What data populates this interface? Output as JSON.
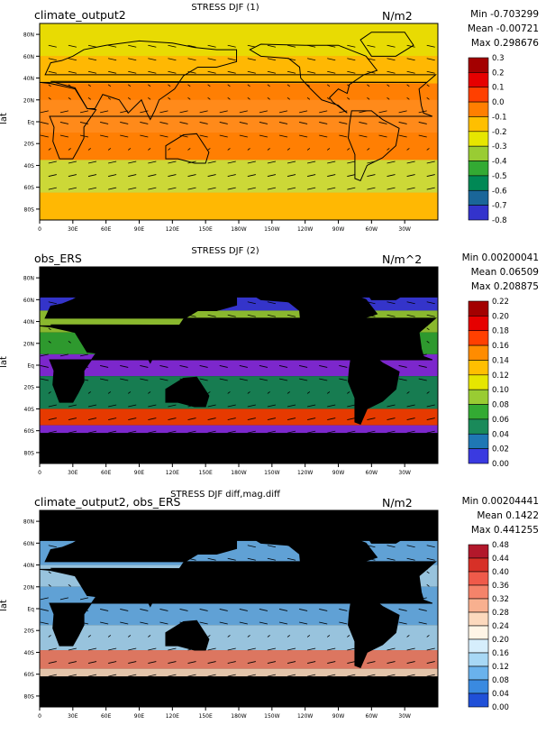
{
  "panels": [
    {
      "title": "STRESS DJF (1)",
      "name": "climate_output2",
      "units": "N/m2",
      "stats": {
        "min": "Min -0.703299",
        "mean": "Mean -0.00721",
        "max": "Max 0.298676"
      },
      "cbar_labels": [
        "0.3",
        "0.2",
        "0.1",
        "0.0",
        "-0.1",
        "-0.2",
        "-0.3",
        "-0.4",
        "-0.5",
        "-0.6",
        "-0.7",
        "-0.8"
      ],
      "cbar_colors": [
        "#a30000",
        "#e60000",
        "#ff4000",
        "#ff7f00",
        "#ffbf00",
        "#e6e600",
        "#99cc33",
        "#33aa33",
        "#008855",
        "#1a6699",
        "#3333cc",
        "#8a2be2"
      ],
      "field_color": "#ff7f1e",
      "land_visible": true
    },
    {
      "title": "STRESS DJF (2)",
      "name": "obs_ERS",
      "units": "N/m^2",
      "stats": {
        "min": "Min 0.00200041",
        "mean": "Mean 0.06509",
        "max": "Max 0.208875"
      },
      "cbar_labels": [
        "0.22",
        "0.20",
        "0.18",
        "0.16",
        "0.14",
        "0.12",
        "0.10",
        "0.08",
        "0.06",
        "0.04",
        "0.02",
        "0.00"
      ],
      "cbar_colors": [
        "#a30000",
        "#e60000",
        "#ff4000",
        "#ff8c00",
        "#ffbf00",
        "#e6e600",
        "#99cc33",
        "#33aa33",
        "#1a8a5a",
        "#1f77b4",
        "#3a3ae0",
        "#8a2be2"
      ],
      "field_color": "#8a2be2",
      "land_visible": false
    },
    {
      "title": "STRESS DJF diff,mag.diff",
      "name": "climate_output2, obs_ERS",
      "units": "N/m2",
      "stats": {
        "min": "Min 0.00204441",
        "mean": "Mean 0.1422",
        "max": "Max 0.441255"
      },
      "cbar_labels": [
        "0.48",
        "0.44",
        "0.40",
        "0.36",
        "0.32",
        "0.28",
        "0.24",
        "0.20",
        "0.16",
        "0.12",
        "0.08",
        "0.04",
        "0.00"
      ],
      "cbar_colors": [
        "#b2182b",
        "#d73027",
        "#ef5a4a",
        "#f4836a",
        "#f8b08f",
        "#fcd9bd",
        "#fff5e6",
        "#d6eefc",
        "#a8d8f5",
        "#6ab2ec",
        "#3a8ae0",
        "#2050d8",
        "#0a10c8"
      ],
      "field_color": "#a8d8f5",
      "land_visible": false
    }
  ],
  "axes": {
    "ylabel": "lat",
    "lat_ticks": [
      "80N",
      "60N",
      "40N",
      "20N",
      "Eq",
      "20S",
      "40S",
      "60S",
      "80S"
    ],
    "lon_ticks": [
      "0",
      "30E",
      "60E",
      "90E",
      "120E",
      "150E",
      "180W",
      "150W",
      "120W",
      "90W",
      "60W",
      "30W"
    ]
  },
  "chart_data": [
    {
      "type": "heatmap",
      "title": "STRESS DJF (1)",
      "ylabel": "lat",
      "units": "N/m2",
      "stats": {
        "min": -0.703299,
        "mean": -0.00721,
        "max": 0.298676
      },
      "colorbar_range": [
        -0.8,
        0.3
      ],
      "y_ticks": [
        "80N",
        "60N",
        "40N",
        "20N",
        "Eq",
        "20S",
        "40S",
        "60S",
        "80S"
      ],
      "x_ticks": [
        "0",
        "30E",
        "60E",
        "90E",
        "120E",
        "150E",
        "180W",
        "150W",
        "120W",
        "90W",
        "60W",
        "30W"
      ],
      "overlay": "wind stress vectors"
    },
    {
      "type": "heatmap",
      "title": "STRESS DJF (2)",
      "ylabel": "lat",
      "units": "N/m^2",
      "stats": {
        "min": 0.00200041,
        "mean": 0.06509,
        "max": 0.208875
      },
      "colorbar_range": [
        0.0,
        0.22
      ],
      "y_ticks": [
        "80N",
        "60N",
        "40N",
        "20N",
        "Eq",
        "20S",
        "40S",
        "60S",
        "80S"
      ],
      "x_ticks": [
        "0",
        "30E",
        "60E",
        "90E",
        "120E",
        "150E",
        "180W",
        "150W",
        "120W",
        "90W",
        "60W",
        "30W"
      ],
      "overlay": "wind stress vectors"
    },
    {
      "type": "heatmap",
      "title": "STRESS DJF diff,mag.diff",
      "ylabel": "lat",
      "units": "N/m2",
      "stats": {
        "min": 0.00204441,
        "mean": 0.1422,
        "max": 0.441255
      },
      "colorbar_range": [
        0.0,
        0.48
      ],
      "y_ticks": [
        "80N",
        "60N",
        "40N",
        "20N",
        "Eq",
        "20S",
        "40S",
        "60S",
        "80S"
      ],
      "x_ticks": [
        "0",
        "30E",
        "60E",
        "90E",
        "120E",
        "150E",
        "180W",
        "150W",
        "120W",
        "90W",
        "60W",
        "30W"
      ],
      "overlay": "wind stress vectors"
    }
  ]
}
